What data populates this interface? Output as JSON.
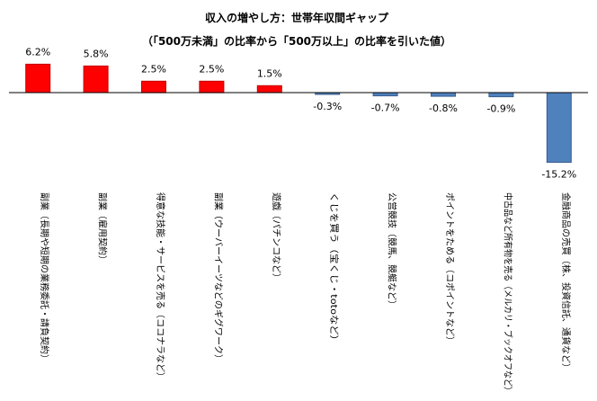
{
  "chart_data": {
    "type": "bar",
    "title": "収入の増やし方：世帯年収間ギャップ",
    "subtitle": "（「500万未満」の比率から「500万以上」の比率を引いた値）",
    "xlabel": "",
    "ylabel": "",
    "ylim": [
      -15.2,
      6.2
    ],
    "grid": false,
    "legend": "none",
    "categories": [
      "副業（長期や短期の業務委託・請負契約）",
      "副業（雇用契約）",
      "得意な技能・サービスを売る（ココナラなど）",
      "副業（ウーバーイーツなどのギグワーク）",
      "遊戯（パチンコなど）",
      "くじを買う（宝くじ・totoなど）",
      "公営競技（競馬、競艇など）",
      "ポイントをためる（コポイントなど）",
      "中古品など所有物を売る（メルカリ・ブックオフなど）",
      "金融商品の売買（株、投資信託、通貨など）"
    ],
    "values": [
      6.2,
      5.8,
      2.5,
      2.5,
      1.5,
      -0.3,
      -0.7,
      -0.8,
      -0.9,
      -15.2
    ],
    "value_labels": [
      "6.2%",
      "5.8%",
      "2.5%",
      "2.5%",
      "1.5%",
      "-0.3%",
      "-0.7%",
      "-0.8%",
      "-0.9%",
      "-15.2%"
    ],
    "colors": {
      "positive_fill": "#ff0000",
      "positive_stroke": "#c00000",
      "negative_fill": "#4f81bd",
      "negative_stroke": "#385d8a",
      "zero_line": "#000000"
    }
  }
}
